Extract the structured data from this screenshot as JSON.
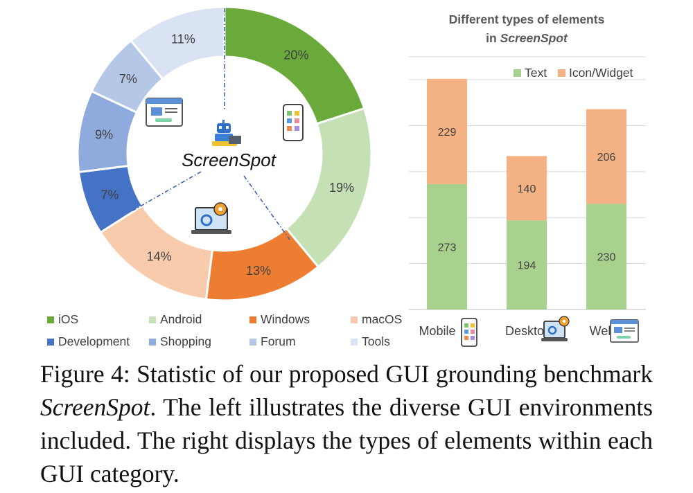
{
  "chart_data": [
    {
      "type": "pie",
      "variant": "donut",
      "center_label": "ScreenSpot",
      "slices": [
        {
          "label": "iOS",
          "value": 20,
          "text": "20%",
          "color": "#6aaa3a"
        },
        {
          "label": "Android",
          "value": 19,
          "text": "19%",
          "color": "#c5e0b4"
        },
        {
          "label": "Windows",
          "value": 13,
          "text": "13%",
          "color": "#ed7d31"
        },
        {
          "label": "macOS",
          "value": 14,
          "text": "14%",
          "color": "#f8cbad"
        },
        {
          "label": "Development",
          "value": 7,
          "text": "7%",
          "color": "#4472c4"
        },
        {
          "label": "Shopping",
          "value": 9,
          "text": "9%",
          "color": "#8faadc"
        },
        {
          "label": "Forum",
          "value": 7,
          "text": "7%",
          "color": "#b4c7e7"
        },
        {
          "label": "Tools",
          "value": 11,
          "text": "11%",
          "color": "#dae3f3"
        }
      ],
      "legend_position": "bottom"
    },
    {
      "type": "bar",
      "stacked": true,
      "title_line1": "Different types of elements",
      "title_line2_prefix": "in ",
      "title_line2_em": "ScreenSpot",
      "categories": [
        "Mobile",
        "Desktop",
        "Web"
      ],
      "series": [
        {
          "name": "Text",
          "values": [
            273,
            194,
            230
          ],
          "color": "#a9d18e"
        },
        {
          "name": "Icon/Widget",
          "values": [
            229,
            140,
            206
          ],
          "color": "#f4b183"
        }
      ],
      "ylim": [
        0,
        550
      ],
      "grid": true,
      "legend_position": "top-right"
    }
  ],
  "caption": {
    "prefix": "Figure 4:  Statistic of our proposed GUI grounding benchmark ",
    "em": "ScreenSpot",
    "suffix": ". The left illustrates the diverse GUI environments included.  The right displays the types of elements within each GUI category."
  }
}
